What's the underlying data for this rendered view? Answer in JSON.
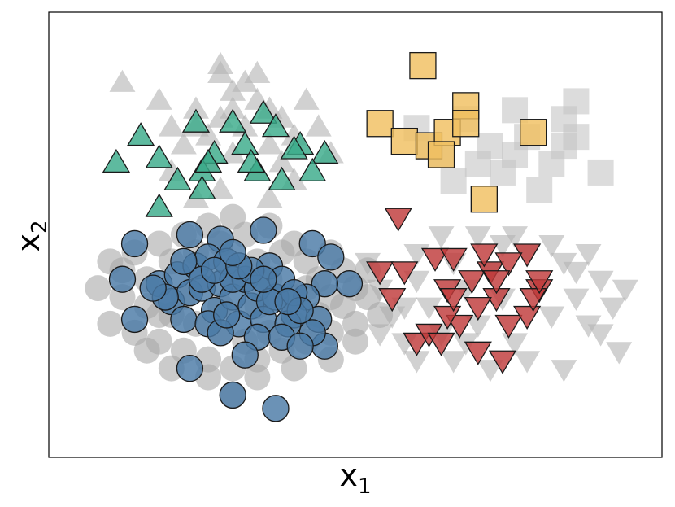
{
  "chart_data": {
    "type": "scatter",
    "xlabel": "x",
    "xlabel_sub": "1",
    "ylabel": "x",
    "ylabel_sub": "2",
    "xlim": [
      0,
      100
    ],
    "ylim": [
      0,
      100
    ],
    "ticks": "none",
    "grid": false,
    "legend": "none",
    "background_points": [
      {
        "shape": "triangle-up",
        "color": "#b3b3b3",
        "points": [
          [
            12,
            84
          ],
          [
            18,
            80
          ],
          [
            20,
            74
          ],
          [
            24,
            78
          ],
          [
            26,
            72
          ],
          [
            28,
            76
          ],
          [
            28,
            86
          ],
          [
            30,
            82
          ],
          [
            32,
            74
          ],
          [
            34,
            80
          ],
          [
            36,
            70
          ],
          [
            30,
            68
          ],
          [
            22,
            70
          ],
          [
            26,
            66
          ],
          [
            38,
            76
          ],
          [
            40,
            72
          ],
          [
            42,
            80
          ],
          [
            34,
            64
          ],
          [
            28,
            60
          ],
          [
            36,
            58
          ],
          [
            40,
            62
          ],
          [
            20,
            64
          ],
          [
            24,
            58
          ],
          [
            32,
            84
          ],
          [
            44,
            74
          ],
          [
            46,
            68
          ],
          [
            38,
            66
          ],
          [
            30,
            78
          ],
          [
            24,
            74
          ],
          [
            36,
            78
          ],
          [
            28,
            88
          ],
          [
            34,
            86
          ]
        ]
      },
      {
        "shape": "square",
        "color": "#c4c4c4",
        "points": [
          [
            60,
            74
          ],
          [
            64,
            68
          ],
          [
            68,
            76
          ],
          [
            72,
            70
          ],
          [
            74,
            64
          ],
          [
            76,
            78
          ],
          [
            78,
            72
          ],
          [
            82,
            66
          ],
          [
            84,
            76
          ],
          [
            80,
            60
          ],
          [
            86,
            72
          ],
          [
            90,
            64
          ],
          [
            66,
            62
          ],
          [
            70,
            66
          ],
          [
            62,
            70
          ],
          [
            76,
            68
          ],
          [
            84,
            70
          ],
          [
            86,
            80
          ]
        ]
      },
      {
        "shape": "triangle-down",
        "color": "#b3b3b3",
        "points": [
          [
            52,
            44
          ],
          [
            54,
            38
          ],
          [
            56,
            32
          ],
          [
            58,
            26
          ],
          [
            60,
            40
          ],
          [
            62,
            34
          ],
          [
            64,
            28
          ],
          [
            66,
            44
          ],
          [
            68,
            38
          ],
          [
            70,
            30
          ],
          [
            72,
            42
          ],
          [
            74,
            36
          ],
          [
            76,
            26
          ],
          [
            78,
            46
          ],
          [
            80,
            38
          ],
          [
            82,
            32
          ],
          [
            84,
            44
          ],
          [
            86,
            36
          ],
          [
            88,
            30
          ],
          [
            90,
            40
          ],
          [
            92,
            34
          ],
          [
            94,
            38
          ],
          [
            60,
            46
          ],
          [
            64,
            50
          ],
          [
            70,
            50
          ],
          [
            76,
            50
          ],
          [
            82,
            48
          ],
          [
            88,
            46
          ],
          [
            54,
            28
          ],
          [
            60,
            22
          ],
          [
            66,
            22
          ],
          [
            72,
            20
          ],
          [
            78,
            22
          ],
          [
            84,
            20
          ],
          [
            90,
            28
          ],
          [
            93,
            24
          ],
          [
            58,
            34
          ],
          [
            68,
            26
          ],
          [
            74,
            48
          ],
          [
            86,
            42
          ]
        ]
      },
      {
        "shape": "circle",
        "color": "#a9a9a9",
        "points": [
          [
            8,
            38
          ],
          [
            10,
            30
          ],
          [
            12,
            36
          ],
          [
            14,
            28
          ],
          [
            16,
            34
          ],
          [
            18,
            26
          ],
          [
            20,
            32
          ],
          [
            22,
            24
          ],
          [
            24,
            30
          ],
          [
            26,
            22
          ],
          [
            28,
            28
          ],
          [
            30,
            20
          ],
          [
            32,
            26
          ],
          [
            34,
            22
          ],
          [
            36,
            28
          ],
          [
            38,
            24
          ],
          [
            40,
            30
          ],
          [
            42,
            26
          ],
          [
            44,
            32
          ],
          [
            46,
            28
          ],
          [
            48,
            34
          ],
          [
            50,
            30
          ],
          [
            52,
            36
          ],
          [
            54,
            32
          ],
          [
            12,
            42
          ],
          [
            14,
            46
          ],
          [
            16,
            40
          ],
          [
            18,
            48
          ],
          [
            20,
            44
          ],
          [
            22,
            50
          ],
          [
            24,
            46
          ],
          [
            26,
            52
          ],
          [
            28,
            48
          ],
          [
            30,
            54
          ],
          [
            32,
            50
          ],
          [
            34,
            44
          ],
          [
            36,
            52
          ],
          [
            38,
            46
          ],
          [
            40,
            48
          ],
          [
            42,
            44
          ],
          [
            44,
            40
          ],
          [
            46,
            36
          ],
          [
            48,
            42
          ],
          [
            50,
            38
          ],
          [
            10,
            44
          ],
          [
            20,
            20
          ],
          [
            26,
            18
          ],
          [
            30,
            14
          ],
          [
            34,
            18
          ],
          [
            40,
            20
          ],
          [
            46,
            22
          ],
          [
            16,
            24
          ],
          [
            22,
            36
          ],
          [
            28,
            34
          ],
          [
            34,
            34
          ],
          [
            40,
            36
          ],
          [
            46,
            46
          ],
          [
            52,
            42
          ],
          [
            18,
            32
          ],
          [
            36,
            40
          ],
          [
            50,
            26
          ],
          [
            42,
            38
          ]
        ]
      }
    ],
    "series": [
      {
        "shape": "triangle-up",
        "color": "#3aab8a",
        "points": [
          [
            15,
            72
          ],
          [
            11,
            66
          ],
          [
            24,
            75
          ],
          [
            27,
            68
          ],
          [
            25,
            64
          ],
          [
            21,
            62
          ],
          [
            18,
            67
          ],
          [
            30,
            75
          ],
          [
            32,
            70
          ],
          [
            35,
            77
          ],
          [
            37,
            74
          ],
          [
            41,
            70
          ],
          [
            45,
            68
          ],
          [
            38,
            62
          ],
          [
            43,
            64
          ],
          [
            25,
            60
          ],
          [
            18,
            56
          ],
          [
            34,
            64
          ],
          [
            40,
            69
          ],
          [
            33,
            66
          ],
          [
            26,
            66
          ]
        ]
      },
      {
        "shape": "square",
        "color": "#f0c060",
        "points": [
          [
            61,
            88
          ],
          [
            54,
            75
          ],
          [
            58,
            71
          ],
          [
            62,
            70
          ],
          [
            65,
            73
          ],
          [
            68,
            79
          ],
          [
            68,
            75
          ],
          [
            79,
            73
          ],
          [
            64,
            68
          ],
          [
            71,
            58
          ]
        ]
      },
      {
        "shape": "triangle-down",
        "color": "#c03a3a",
        "points": [
          [
            57,
            54
          ],
          [
            54,
            42
          ],
          [
            58,
            42
          ],
          [
            56,
            36
          ],
          [
            63,
            45
          ],
          [
            65,
            38
          ],
          [
            66,
            45
          ],
          [
            67,
            30
          ],
          [
            69,
            40
          ],
          [
            65,
            32
          ],
          [
            72,
            42
          ],
          [
            73,
            36
          ],
          [
            75,
            30
          ],
          [
            78,
            46
          ],
          [
            75,
            44
          ],
          [
            80,
            38
          ],
          [
            78,
            32
          ],
          [
            79,
            36
          ],
          [
            74,
            22
          ],
          [
            70,
            24
          ],
          [
            60,
            26
          ],
          [
            62,
            28
          ],
          [
            64,
            26
          ],
          [
            66,
            36
          ],
          [
            70,
            34
          ],
          [
            71,
            46
          ],
          [
            73,
            40
          ],
          [
            80,
            40
          ]
        ]
      },
      {
        "shape": "circle",
        "color": "#4a7aa6",
        "points": [
          [
            14,
            48
          ],
          [
            23,
            50
          ],
          [
            28,
            49
          ],
          [
            35,
            51
          ],
          [
            43,
            48
          ],
          [
            46,
            45
          ],
          [
            49,
            39
          ],
          [
            45,
            39
          ],
          [
            42,
            36
          ],
          [
            40,
            32
          ],
          [
            44,
            31
          ],
          [
            45,
            25
          ],
          [
            43,
            28
          ],
          [
            12,
            40
          ],
          [
            14,
            31
          ],
          [
            18,
            39
          ],
          [
            20,
            35
          ],
          [
            21,
            41
          ],
          [
            22,
            31
          ],
          [
            23,
            37
          ],
          [
            24,
            43
          ],
          [
            25,
            38
          ],
          [
            26,
            45
          ],
          [
            27,
            33
          ],
          [
            28,
            39
          ],
          [
            29,
            44
          ],
          [
            30,
            36
          ],
          [
            31,
            30
          ],
          [
            32,
            40
          ],
          [
            33,
            34
          ],
          [
            34,
            38
          ],
          [
            35,
            31
          ],
          [
            36,
            43
          ],
          [
            37,
            36
          ],
          [
            38,
            40
          ],
          [
            39,
            30
          ],
          [
            40,
            37
          ],
          [
            41,
            33
          ],
          [
            30,
            40
          ],
          [
            26,
            30
          ],
          [
            34,
            27
          ],
          [
            38,
            27
          ],
          [
            41,
            25
          ],
          [
            23,
            20
          ],
          [
            32,
            23
          ],
          [
            30,
            14
          ],
          [
            37,
            11
          ],
          [
            25,
            40
          ],
          [
            28,
            28
          ],
          [
            36,
            35
          ],
          [
            33,
            42
          ],
          [
            27,
            42
          ],
          [
            31,
            43
          ],
          [
            19,
            36
          ],
          [
            17,
            38
          ],
          [
            39,
            35
          ],
          [
            35,
            40
          ],
          [
            29,
            32
          ],
          [
            22,
            44
          ],
          [
            30,
            46
          ]
        ]
      }
    ]
  }
}
